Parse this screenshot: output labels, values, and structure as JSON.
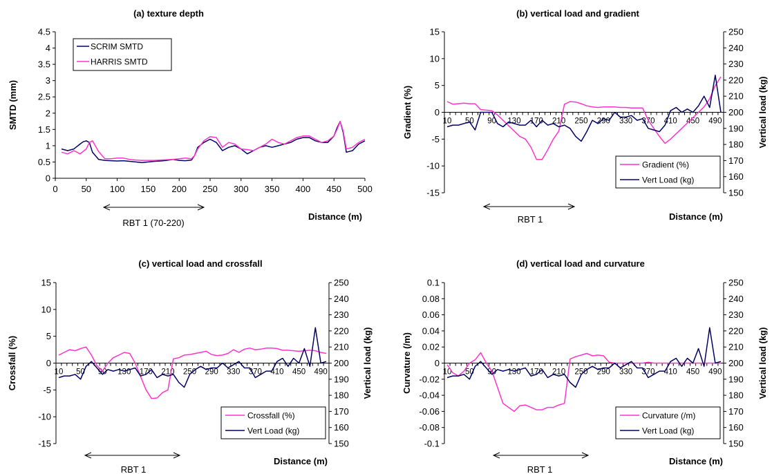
{
  "colors": {
    "magenta": "#ff33cc",
    "navy": "#000066"
  },
  "chart_data": [
    {
      "type": "line",
      "title": "(a) texture depth",
      "xlabel": "Distance (m)",
      "ylabel": "SMTD (mm)",
      "xlim": [
        0,
        500
      ],
      "ylim": [
        0,
        4.5
      ],
      "xticks": [
        "0",
        "50",
        "100",
        "150",
        "200",
        "250",
        "300",
        "350",
        "400",
        "450",
        "500"
      ],
      "yticks": [
        "0",
        "0.5",
        "1",
        "1.5",
        "2",
        "2.5",
        "3",
        "3.5",
        "4",
        "4.5"
      ],
      "legend": "top-left",
      "annotation": "RBT 1 (70-220)",
      "series": [
        {
          "name": "SCRIM SMTD",
          "color": "#000066",
          "x": [
            10,
            20,
            30,
            40,
            45,
            50,
            55,
            60,
            70,
            80,
            90,
            100,
            110,
            120,
            130,
            140,
            150,
            160,
            170,
            180,
            190,
            200,
            210,
            220,
            225,
            230,
            240,
            250,
            260,
            270,
            280,
            290,
            300,
            310,
            320,
            330,
            340,
            350,
            360,
            370,
            380,
            390,
            400,
            410,
            420,
            430,
            440,
            450,
            455,
            460,
            465,
            470,
            480,
            490,
            500
          ],
          "y": [
            0.9,
            0.85,
            0.9,
            1.05,
            1.12,
            1.15,
            1.1,
            0.8,
            0.58,
            0.55,
            0.54,
            0.53,
            0.54,
            0.52,
            0.5,
            0.48,
            0.5,
            0.52,
            0.53,
            0.55,
            0.58,
            0.55,
            0.54,
            0.56,
            0.7,
            0.95,
            1.1,
            1.2,
            1.1,
            0.85,
            0.95,
            1.0,
            0.9,
            0.75,
            0.85,
            0.95,
            1.0,
            0.95,
            1.0,
            1.05,
            1.1,
            1.2,
            1.25,
            1.25,
            1.15,
            1.1,
            1.1,
            1.3,
            1.55,
            1.75,
            1.4,
            0.8,
            0.85,
            1.05,
            1.15
          ]
        },
        {
          "name": "HARRIS SMTD",
          "color": "#ff33cc",
          "x": [
            10,
            20,
            30,
            40,
            50,
            55,
            60,
            70,
            80,
            90,
            100,
            110,
            120,
            130,
            140,
            150,
            160,
            170,
            180,
            190,
            200,
            210,
            220,
            225,
            230,
            240,
            250,
            260,
            270,
            280,
            290,
            300,
            310,
            320,
            330,
            340,
            350,
            360,
            370,
            380,
            390,
            400,
            410,
            420,
            430,
            440,
            450,
            455,
            460,
            465,
            470,
            480,
            490,
            500
          ],
          "y": [
            0.8,
            0.75,
            0.85,
            0.75,
            0.9,
            1.1,
            1.15,
            0.82,
            0.6,
            0.6,
            0.62,
            0.62,
            0.58,
            0.56,
            0.55,
            0.55,
            0.55,
            0.56,
            0.57,
            0.58,
            0.6,
            0.62,
            0.6,
            0.7,
            0.9,
            1.15,
            1.28,
            1.25,
            0.95,
            1.1,
            1.05,
            0.9,
            0.88,
            0.85,
            0.95,
            1.05,
            1.2,
            1.1,
            1.05,
            1.15,
            1.25,
            1.3,
            1.3,
            1.2,
            1.1,
            1.15,
            1.3,
            1.5,
            1.75,
            1.45,
            0.9,
            0.95,
            1.1,
            1.2
          ]
        }
      ]
    },
    {
      "type": "line",
      "title": "(b) vertical load and gradient",
      "xlabel": "Distance (m)",
      "ylabel": "Gradient (%)",
      "y2label": "Vertical load (kg)",
      "ylim": [
        -15,
        15
      ],
      "y2lim": [
        150,
        250
      ],
      "xticks": [
        "10",
        "50",
        "90",
        "130",
        "170",
        "210",
        "250",
        "290",
        "330",
        "370",
        "410",
        "450",
        "490"
      ],
      "yticks": [
        "-15",
        "-10",
        "-5",
        "0",
        "5",
        "10",
        "15"
      ],
      "y2ticks": [
        "150",
        "160",
        "170",
        "180",
        "190",
        "200",
        "210",
        "220",
        "230",
        "240",
        "250"
      ],
      "legend": "bottom-right",
      "annotation": "RBT 1",
      "series": [
        {
          "name": "Gradient (%)",
          "axis": "left",
          "color": "#ff33cc",
          "x": [
            10,
            20,
            30,
            40,
            50,
            60,
            70,
            80,
            90,
            100,
            110,
            120,
            130,
            140,
            150,
            160,
            170,
            180,
            190,
            200,
            210,
            220,
            230,
            240,
            250,
            260,
            270,
            280,
            290,
            300,
            310,
            320,
            330,
            340,
            350,
            360,
            370,
            380,
            390,
            400,
            410,
            420,
            430,
            440,
            450,
            460,
            470,
            480,
            490,
            500
          ],
          "y": [
            2.0,
            1.5,
            1.6,
            1.7,
            1.6,
            1.6,
            0.5,
            0.4,
            0.3,
            -0.5,
            -1.5,
            -2.5,
            -3.5,
            -4.5,
            -5.0,
            -6.5,
            -8.8,
            -8.8,
            -7.0,
            -5.0,
            -3.5,
            1.5,
            2.0,
            1.9,
            1.6,
            1.2,
            1.0,
            0.9,
            1.0,
            1.0,
            1.0,
            0.9,
            0.9,
            0.8,
            0.8,
            0.8,
            -1.5,
            -3.0,
            -4.5,
            -5.8,
            -5.0,
            -4.0,
            -3.0,
            -2.0,
            -1.0,
            0.0,
            1.0,
            2.5,
            5.0,
            6.6
          ]
        },
        {
          "name": "Vert Load (kg)",
          "axis": "right",
          "color": "#000066",
          "x": [
            10,
            20,
            30,
            40,
            50,
            60,
            70,
            80,
            90,
            100,
            110,
            120,
            130,
            140,
            150,
            160,
            170,
            180,
            190,
            200,
            210,
            220,
            230,
            240,
            250,
            260,
            270,
            280,
            290,
            300,
            310,
            320,
            330,
            340,
            350,
            360,
            370,
            380,
            390,
            400,
            410,
            420,
            430,
            440,
            450,
            460,
            470,
            480,
            490,
            500
          ],
          "y": [
            191,
            192,
            192,
            193,
            194,
            189,
            200,
            200,
            200,
            193,
            191,
            194,
            193,
            192,
            192,
            195,
            191,
            195,
            192,
            193,
            191,
            192,
            190,
            185,
            182,
            188,
            195,
            193,
            196,
            195,
            200,
            197,
            197,
            198,
            195,
            196,
            190,
            189,
            188,
            192,
            201,
            203,
            200,
            202,
            200,
            204,
            210,
            203,
            223,
            200
          ]
        }
      ]
    },
    {
      "type": "line",
      "title": "(c) vertical load and crossfall",
      "xlabel": "Distance (m)",
      "ylabel": "Crossfall (%)",
      "y2label": "Vertical load (kg)",
      "ylim": [
        -15,
        15
      ],
      "y2lim": [
        150,
        250
      ],
      "xticks": [
        "10",
        "50",
        "90",
        "130",
        "170",
        "210",
        "250",
        "290",
        "330",
        "370",
        "410",
        "450",
        "490"
      ],
      "yticks": [
        "-15",
        "-10",
        "-5",
        "0",
        "5",
        "10",
        "15"
      ],
      "y2ticks": [
        "150",
        "160",
        "170",
        "180",
        "190",
        "200",
        "210",
        "220",
        "230",
        "240",
        "250"
      ],
      "legend": "bottom-right",
      "annotation": "RBT 1",
      "series": [
        {
          "name": "Crossfall (%)",
          "axis": "left",
          "color": "#ff33cc",
          "x": [
            10,
            20,
            30,
            40,
            50,
            60,
            70,
            80,
            90,
            100,
            110,
            120,
            130,
            140,
            150,
            160,
            170,
            180,
            190,
            200,
            210,
            220,
            230,
            240,
            250,
            260,
            270,
            280,
            290,
            300,
            310,
            320,
            330,
            340,
            350,
            360,
            370,
            380,
            390,
            400,
            410,
            420,
            430,
            440,
            450,
            460,
            470,
            480,
            490,
            500
          ],
          "y": [
            1.5,
            2.0,
            2.5,
            2.3,
            2.7,
            3.0,
            1.5,
            -0.5,
            -1.5,
            0.0,
            1.0,
            1.5,
            2.0,
            1.8,
            0.0,
            -2.5,
            -5.0,
            -6.6,
            -6.5,
            -5.5,
            -5.0,
            0.8,
            1.0,
            1.5,
            1.6,
            1.8,
            2.0,
            2.2,
            1.6,
            1.4,
            1.5,
            1.8,
            2.5,
            2.0,
            2.6,
            2.8,
            2.5,
            2.6,
            2.8,
            2.8,
            2.7,
            2.4,
            2.4,
            2.3,
            2.2,
            2.3,
            2.4,
            2.3,
            2.0,
            1.8
          ]
        },
        {
          "name": "Vert Load (kg)",
          "axis": "right",
          "color": "#000066",
          "x": [
            10,
            20,
            30,
            40,
            50,
            60,
            70,
            80,
            90,
            100,
            110,
            120,
            130,
            140,
            150,
            160,
            170,
            180,
            190,
            200,
            210,
            220,
            230,
            240,
            250,
            260,
            270,
            280,
            290,
            300,
            310,
            320,
            330,
            340,
            350,
            360,
            370,
            380,
            390,
            400,
            410,
            420,
            430,
            440,
            450,
            460,
            470,
            480,
            490,
            500
          ],
          "y": [
            191,
            192,
            192,
            193,
            190,
            198,
            201,
            197,
            193,
            196,
            195,
            196,
            195,
            196,
            197,
            192,
            193,
            196,
            191,
            193,
            192,
            193,
            188,
            185,
            193,
            196,
            198,
            196,
            197,
            197,
            200,
            197,
            199,
            201,
            197,
            197,
            191,
            193,
            195,
            195,
            201,
            203,
            198,
            203,
            200,
            209,
            198,
            222,
            200,
            201
          ]
        }
      ]
    },
    {
      "type": "line",
      "title": "(d) vertical load and curvature",
      "xlabel": "Distance (m)",
      "ylabel": "Curvature (/m)",
      "y2label": "Vertical load (kg)",
      "ylim": [
        -0.1,
        0.1
      ],
      "y2lim": [
        150,
        250
      ],
      "xticks": [
        "10",
        "50",
        "90",
        "130",
        "170",
        "210",
        "250",
        "290",
        "330",
        "370",
        "410",
        "450",
        "490"
      ],
      "yticks": [
        "-0.1",
        "-0.08",
        "-0.06",
        "-0.04",
        "-0.02",
        "0",
        "0.02",
        "0.04",
        "0.06",
        "0.08",
        "0.1"
      ],
      "y2ticks": [
        "150",
        "160",
        "170",
        "180",
        "190",
        "200",
        "210",
        "220",
        "230",
        "240",
        "250"
      ],
      "legend": "bottom-right",
      "annotation": "RBT 1",
      "series": [
        {
          "name": "Curvature (/m)",
          "axis": "left",
          "color": "#ff33cc",
          "x": [
            10,
            20,
            30,
            40,
            50,
            60,
            70,
            80,
            90,
            100,
            110,
            120,
            130,
            140,
            150,
            160,
            170,
            180,
            190,
            200,
            210,
            220,
            230,
            240,
            250,
            260,
            270,
            280,
            290,
            300,
            310,
            320,
            330,
            340,
            350,
            360,
            370,
            380,
            390,
            400,
            410,
            420,
            430,
            440,
            450,
            460,
            470,
            480,
            490,
            500
          ],
          "y": [
            -0.002,
            -0.012,
            -0.016,
            -0.01,
            0.0,
            0.004,
            0.013,
            0.0,
            -0.01,
            -0.03,
            -0.05,
            -0.055,
            -0.06,
            -0.053,
            -0.052,
            -0.055,
            -0.058,
            -0.058,
            -0.055,
            -0.055,
            -0.052,
            -0.05,
            0.005,
            0.008,
            0.01,
            0.012,
            0.009,
            0.01,
            0.009,
            0.001,
            0.0,
            0.0,
            0.0,
            0.0,
            0.0,
            0.0,
            0.001,
            0.0,
            0.0,
            0.0,
            0.0,
            0.0,
            0.0,
            0.0,
            0.0,
            0.0,
            0.0,
            0.0,
            0.0,
            0.0
          ]
        },
        {
          "name": "Vert Load (kg)",
          "axis": "right",
          "color": "#000066",
          "x": [
            10,
            20,
            30,
            40,
            50,
            60,
            70,
            80,
            90,
            100,
            110,
            120,
            130,
            140,
            150,
            160,
            170,
            180,
            190,
            200,
            210,
            220,
            230,
            240,
            250,
            260,
            270,
            280,
            290,
            300,
            310,
            320,
            330,
            340,
            350,
            360,
            370,
            380,
            390,
            400,
            410,
            420,
            430,
            440,
            450,
            460,
            470,
            480,
            490,
            500
          ],
          "y": [
            191,
            192,
            192,
            193,
            190,
            198,
            201,
            197,
            193,
            196,
            195,
            196,
            195,
            196,
            197,
            192,
            193,
            196,
            191,
            193,
            192,
            193,
            188,
            185,
            193,
            196,
            198,
            196,
            197,
            197,
            200,
            197,
            199,
            201,
            197,
            197,
            191,
            193,
            195,
            195,
            201,
            203,
            198,
            203,
            200,
            209,
            198,
            222,
            200,
            201
          ]
        }
      ]
    }
  ]
}
